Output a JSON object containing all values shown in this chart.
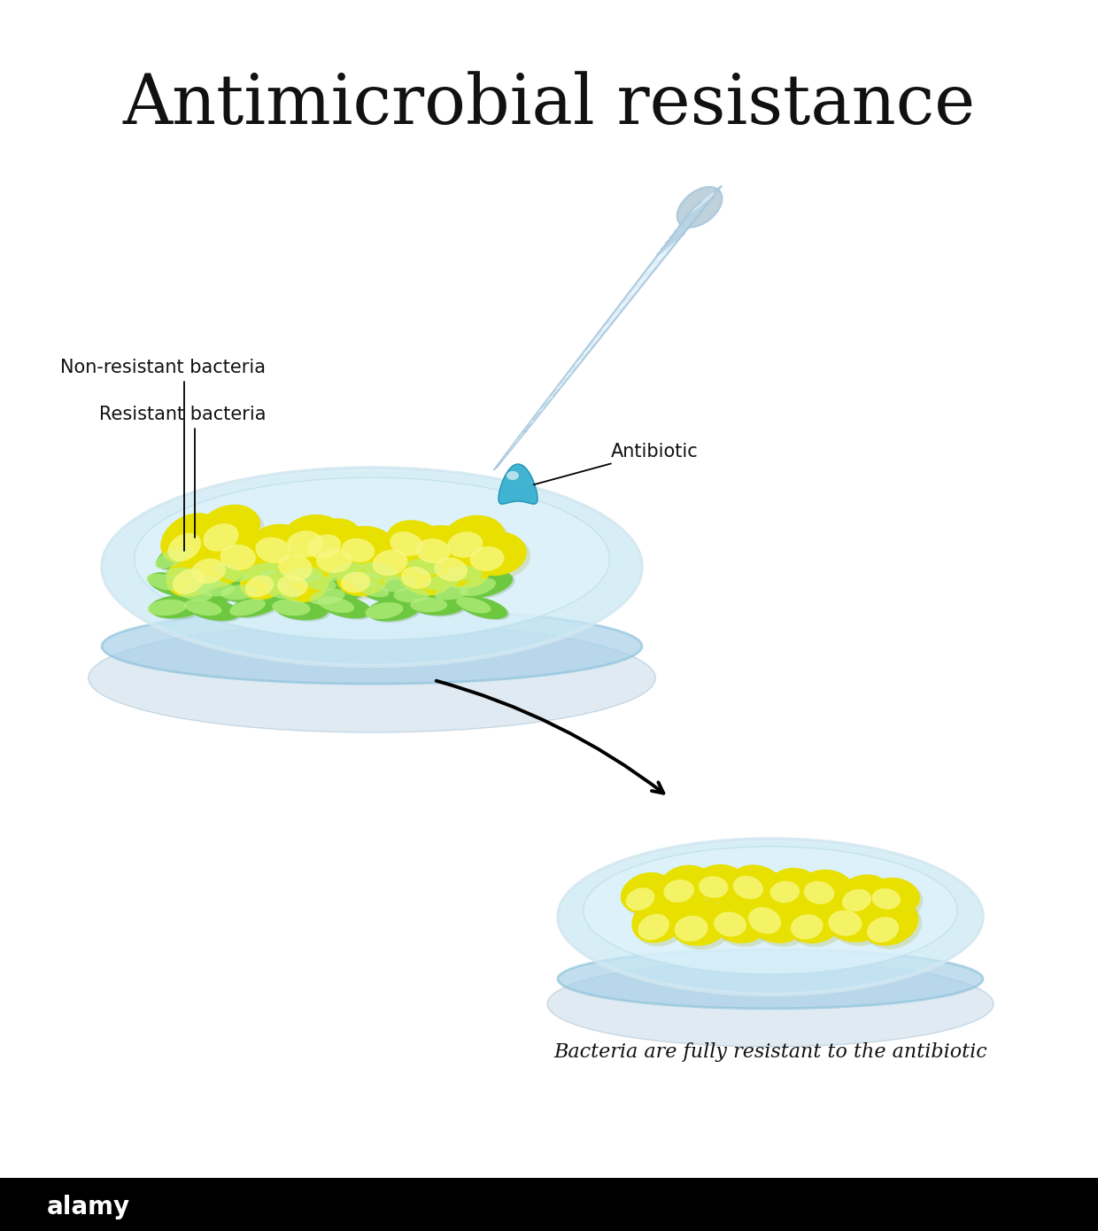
{
  "title": "Antimicrobial resistance",
  "title_fontsize": 56,
  "bg_color": "#ffffff",
  "label_nonresistant": "Non-resistant bacteria",
  "label_resistant": "Resistant bacteria",
  "label_antibiotic": "Antibiotic",
  "label_bottom": "Bacteria are fully resistant to the antibiotic",
  "yellow_color": "#e8e000",
  "yellow_hi": "#f8f880",
  "yellow_shadow": "#a0a000",
  "green_color": "#6dc840",
  "green_hi": "#b8f080",
  "green_shadow": "#3a7018",
  "drop_color": "#38b0d0",
  "drop_hi": "#80d8f0",
  "pipette_color": "#dceef8",
  "pipette_edge": "#a8c8dc",
  "pipette_bulb": "#b8ccd8",
  "dish_fill": "#c8e8f5",
  "dish_inner": "#dff3fb",
  "dish_rim": "#90c4dc",
  "dish_base": "#a8d0e8"
}
